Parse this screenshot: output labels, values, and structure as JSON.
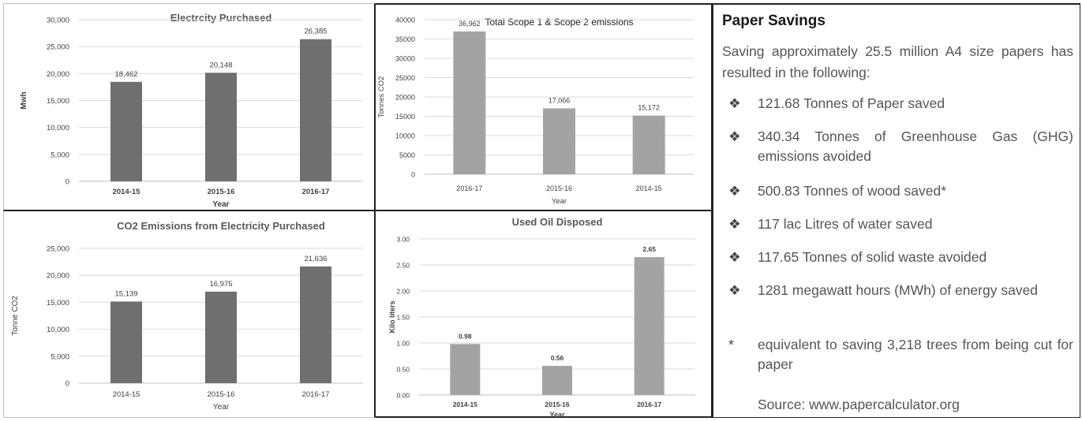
{
  "colors": {
    "bar_dark": "#6f6f6f",
    "bar_light": "#a3a3a3",
    "grid": "#d9d9d9"
  },
  "chart_data": [
    {
      "type": "bar",
      "title": "Electrcity Purchased",
      "xlabel": "Year",
      "ylabel": "Mwh",
      "categories": [
        "2014-15",
        "2015-16",
        "2016-17"
      ],
      "values": [
        18462,
        20148,
        26385
      ],
      "value_labels": [
        "18,462",
        "20,148",
        "26,385"
      ],
      "ylim": [
        0,
        30000
      ],
      "yticks": [
        0,
        5000,
        10000,
        15000,
        20000,
        25000,
        30000
      ],
      "ytick_labels": [
        "0",
        "5,000",
        "10,000",
        "15,000",
        "20,000",
        "25,000",
        "30,000"
      ],
      "grid": true,
      "color": "#6f6f6f"
    },
    {
      "type": "bar",
      "title": "Total Scope 1 & Scope 2 emissions",
      "xlabel": "Year",
      "ylabel": "Tonnes CO2",
      "categories": [
        "2016-17",
        "2015-16",
        "2014-15"
      ],
      "values": [
        36962,
        17066,
        15172
      ],
      "value_labels": [
        "36,962",
        "17,066",
        "15,172"
      ],
      "ylim": [
        0,
        40000
      ],
      "yticks": [
        0,
        5000,
        10000,
        15000,
        20000,
        25000,
        30000,
        35000,
        40000
      ],
      "ytick_labels": [
        "0",
        "5000",
        "10000",
        "15000",
        "20000",
        "25000",
        "30000",
        "35000",
        "40000"
      ],
      "grid": true,
      "color": "#a3a3a3"
    },
    {
      "type": "bar",
      "title": "CO2 Emissions from Electricity Purchased",
      "xlabel": "Year",
      "ylabel": "Tonne CO2",
      "categories": [
        "2014-15",
        "2015-16",
        "2016-17"
      ],
      "values": [
        15139,
        16975,
        21636
      ],
      "value_labels": [
        "15,139",
        "16,975",
        "21,636"
      ],
      "ylim": [
        0,
        25000
      ],
      "yticks": [
        0,
        5000,
        10000,
        15000,
        20000,
        25000
      ],
      "ytick_labels": [
        "0",
        "5,000",
        "10,000",
        "15,000",
        "20,000",
        "25,000"
      ],
      "grid": true,
      "color": "#6f6f6f"
    },
    {
      "type": "bar",
      "title": "Used Oil Disposed",
      "xlabel": "Year",
      "ylabel": "Kilo liters",
      "categories": [
        "2014-15",
        "2015-16",
        "2016-17"
      ],
      "values": [
        0.98,
        0.56,
        2.65
      ],
      "value_labels": [
        "0.98",
        "0.56",
        "2.65"
      ],
      "ylim": [
        0,
        3
      ],
      "yticks": [
        0,
        0.5,
        1,
        1.5,
        2,
        2.5,
        3
      ],
      "ytick_labels": [
        "0.00",
        "0.50",
        "1.00",
        "1.50",
        "2.00",
        "2.50",
        "3.00"
      ],
      "grid": true,
      "color": "#a3a3a3"
    }
  ],
  "paper_savings": {
    "heading": "Paper Savings",
    "intro": "Saving approximately 25.5 million A4 size papers has resulted in the following:",
    "bullet_glyph": "❖",
    "items": [
      "121.68 Tonnes of Paper saved",
      "340.34 Tonnes of Greenhouse Gas (GHG) emissions avoided",
      "500.83 Tonnes of wood saved*",
      "117 lac Litres of water saved",
      "117.65 Tonnes of solid waste avoided",
      "1281 megawatt hours (MWh) of energy saved"
    ],
    "footnote_mark": "*",
    "footnote": "equivalent to saving 3,218 trees from being cut for paper",
    "source": "Source: www.papercalculator.org"
  }
}
